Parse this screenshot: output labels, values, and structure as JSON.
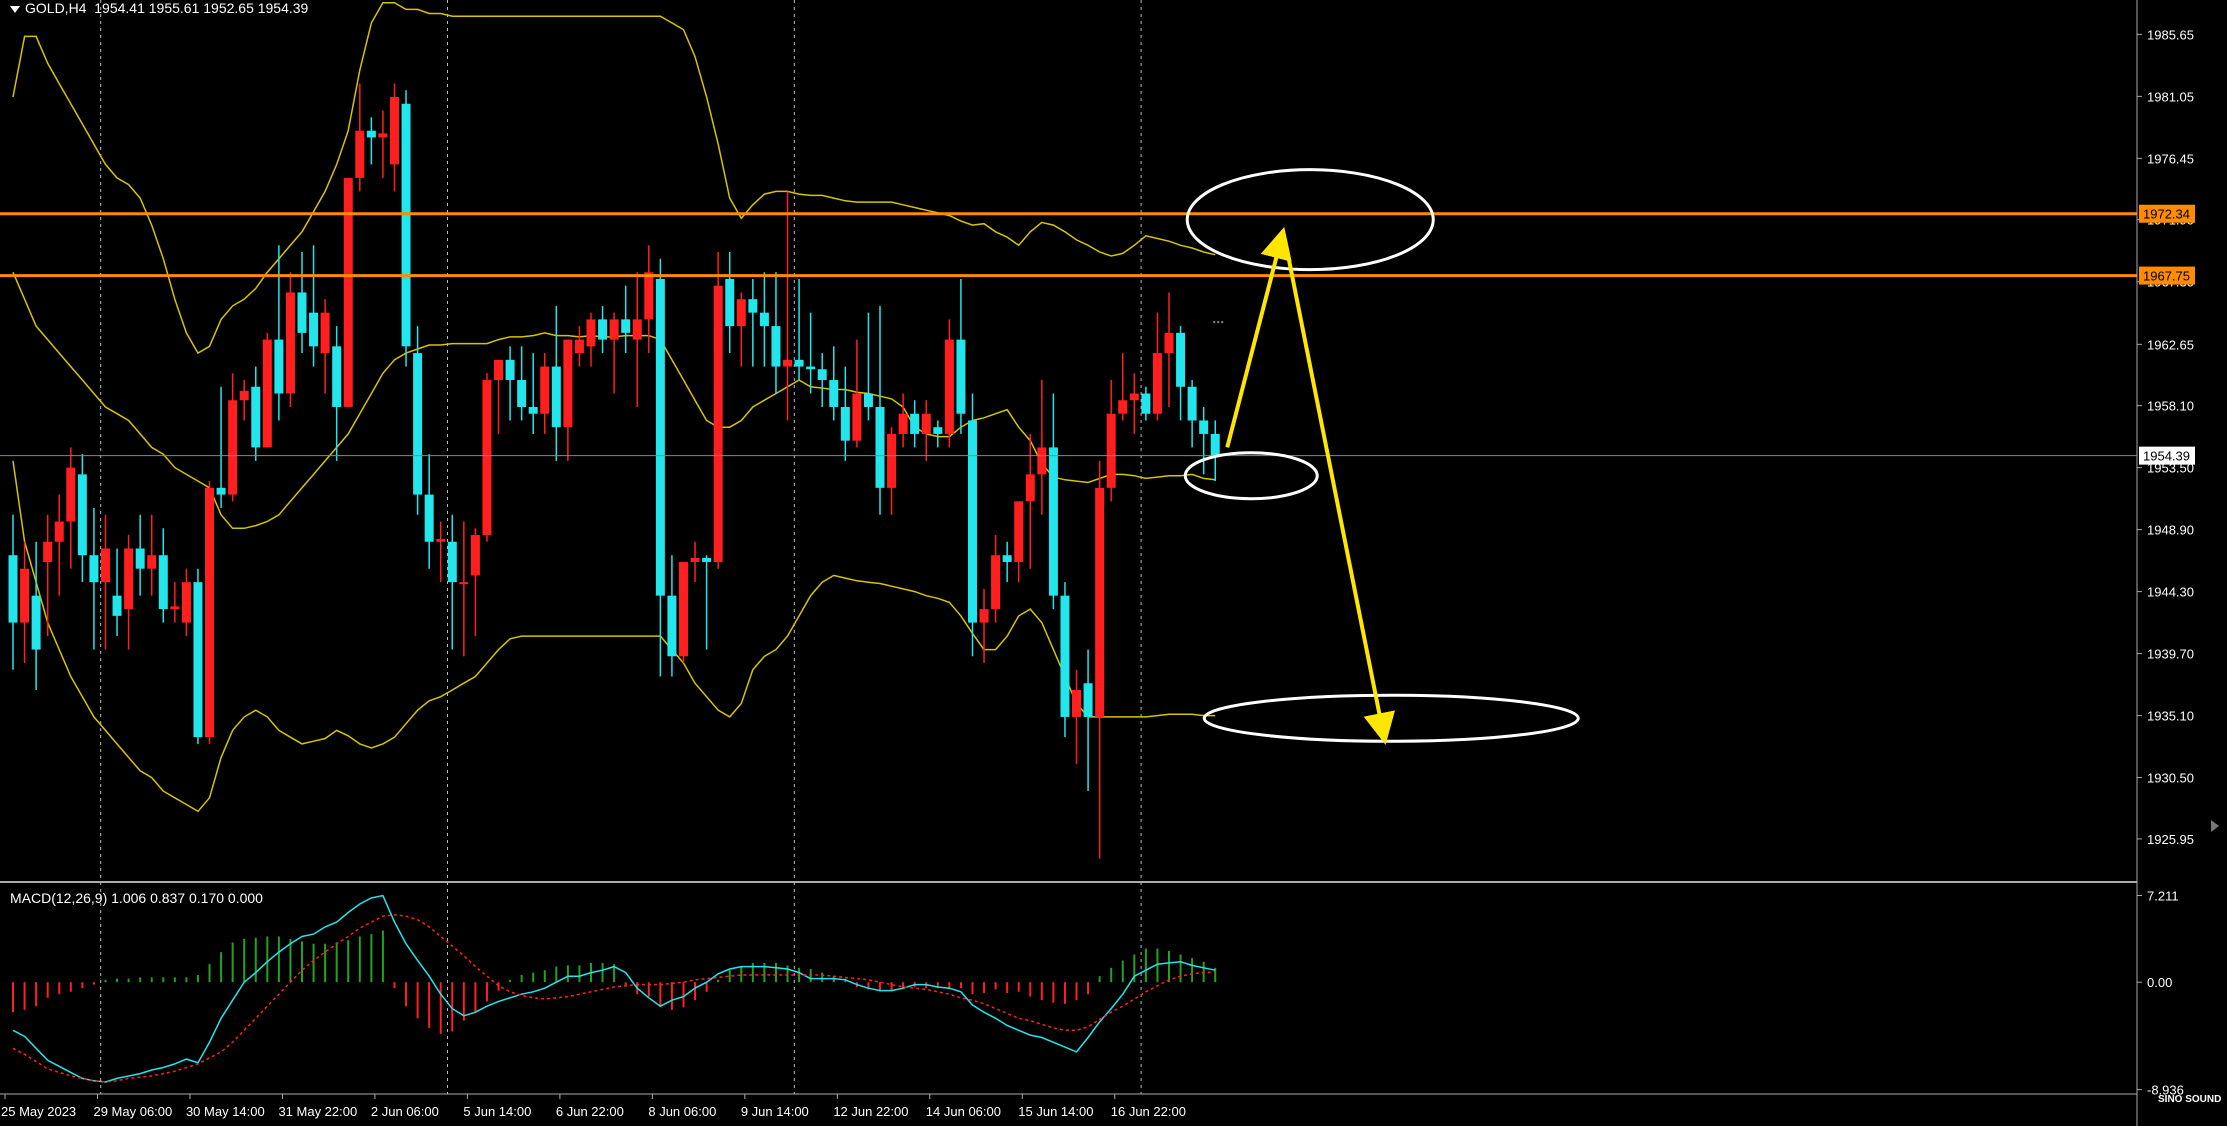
{
  "header": {
    "symbol": "GOLD,H4",
    "ohlc": "1954.41 1955.61 1952.65 1954.39"
  },
  "macd": {
    "label": "MACD(12,26,9) 1.006 0.837 0.170 0.000"
  },
  "logo": {
    "text": "SINO SOUND"
  },
  "colors": {
    "bull": "#ff1f1f",
    "bear": "#22e6ec",
    "bands": "#d6c400",
    "hline": "#ff8c00",
    "macd_line": "#22e6ec",
    "signal": "#ff2020",
    "hist_pos": "#22a322",
    "hist_neg": "#ff2020",
    "arrow": "#ffe600",
    "ellipse": "#ffffff"
  },
  "chart_data": {
    "type": "candlestick",
    "timeframe": "H4",
    "ylim": [
      1922.9,
      1988.2
    ],
    "price_ticks": [
      "1985.65",
      "1981.05",
      "1976.45",
      "1971.90",
      "1967.30",
      "1962.65",
      "1958.10",
      "1953.50",
      "1948.90",
      "1944.30",
      "1939.70",
      "1935.10",
      "1930.50",
      "1925.95"
    ],
    "price_tick_values": [
      1985.65,
      1981.05,
      1976.45,
      1971.9,
      1967.3,
      1962.65,
      1958.1,
      1953.5,
      1948.9,
      1944.3,
      1939.7,
      1935.1,
      1930.5,
      1925.95
    ],
    "x_labels": [
      "25 May 2023",
      "29 May 06:00",
      "30 May 14:00",
      "31 May 22:00",
      "2 Jun 06:00",
      "5 Jun 14:00",
      "6 Jun 22:00",
      "8 Jun 06:00",
      "9 Jun 14:00",
      "12 Jun 22:00",
      "14 Jun 06:00",
      "15 Jun 14:00",
      "16 Jun 22:00"
    ],
    "x_label_index": [
      0,
      8,
      16,
      24,
      32,
      40,
      48,
      56,
      64,
      72,
      80,
      88,
      96
    ],
    "separator_index": [
      8,
      38,
      68,
      98
    ],
    "horizontal_lines": [
      {
        "label": "1972.34",
        "value": 1972.34
      },
      {
        "label": "1967.75",
        "value": 1967.75
      }
    ],
    "current_price": {
      "label": "1954.39",
      "value": 1954.39
    },
    "candles": [
      [
        1947.0,
        1950.0,
        1938.5,
        1942.0
      ],
      [
        1942.0,
        1948.0,
        1939.0,
        1946.0
      ],
      [
        1944.0,
        1948.0,
        1937.0,
        1940.0
      ],
      [
        1946.5,
        1950.0,
        1941.0,
        1948.0
      ],
      [
        1948.0,
        1951.5,
        1944.0,
        1949.5
      ],
      [
        1949.5,
        1955.0,
        1946.0,
        1953.5
      ],
      [
        1953.0,
        1954.5,
        1945.0,
        1947.0
      ],
      [
        1947.0,
        1950.5,
        1940.0,
        1945.0
      ],
      [
        1945.0,
        1950.0,
        1940.0,
        1947.5
      ],
      [
        1944.0,
        1947.5,
        1941.0,
        1942.5
      ],
      [
        1943.0,
        1948.5,
        1940.0,
        1947.5
      ],
      [
        1947.5,
        1950.0,
        1944.0,
        1946.0
      ],
      [
        1946.0,
        1950.0,
        1944.0,
        1947.0
      ],
      [
        1947.0,
        1949.0,
        1942.0,
        1943.0
      ],
      [
        1943.0,
        1945.0,
        1942.0,
        1943.2
      ],
      [
        1942.0,
        1946.0,
        1941.0,
        1945.0
      ],
      [
        1945.0,
        1946.0,
        1933.0,
        1933.5
      ],
      [
        1933.5,
        1952.5,
        1933.0,
        1952.0
      ],
      [
        1952.0,
        1959.5,
        1950.5,
        1951.5
      ],
      [
        1951.5,
        1960.5,
        1951.0,
        1958.5
      ],
      [
        1958.5,
        1960.0,
        1957.0,
        1959.2
      ],
      [
        1959.5,
        1961.0,
        1954.0,
        1955.0
      ],
      [
        1955.0,
        1963.5,
        1955.0,
        1963.0
      ],
      [
        1963.0,
        1970.0,
        1957.0,
        1959.0
      ],
      [
        1959.0,
        1968.0,
        1958.0,
        1966.5
      ],
      [
        1966.5,
        1969.5,
        1962.0,
        1963.5
      ],
      [
        1965.0,
        1970.0,
        1961.0,
        1962.5
      ],
      [
        1962.0,
        1966.0,
        1959.0,
        1965.0
      ],
      [
        1962.5,
        1964.0,
        1954.0,
        1958.0
      ],
      [
        1958.0,
        1975.0,
        1958.0,
        1975.0
      ],
      [
        1975.0,
        1982.0,
        1974.0,
        1978.5
      ],
      [
        1978.5,
        1979.5,
        1976.0,
        1978.0
      ],
      [
        1978.0,
        1980.0,
        1975.0,
        1978.3
      ],
      [
        1976.0,
        1982.0,
        1974.0,
        1981.0
      ],
      [
        1980.5,
        1981.5,
        1961.0,
        1962.5
      ],
      [
        1962.0,
        1964.0,
        1950.0,
        1951.5
      ],
      [
        1951.5,
        1954.5,
        1946.0,
        1948.0
      ],
      [
        1948.0,
        1949.5,
        1945.0,
        1948.2
      ],
      [
        1948.0,
        1950.0,
        1940.0,
        1945.0
      ],
      [
        1945.0,
        1949.5,
        1939.5,
        1945.0
      ],
      [
        1945.5,
        1949.0,
        1941.0,
        1948.5
      ],
      [
        1948.5,
        1960.5,
        1948.0,
        1960.0
      ],
      [
        1960.0,
        1961.5,
        1956.0,
        1961.5
      ],
      [
        1961.5,
        1962.5,
        1957.0,
        1960.0
      ],
      [
        1960.0,
        1962.5,
        1957.0,
        1958.0
      ],
      [
        1958.0,
        1962.0,
        1956.0,
        1957.5
      ],
      [
        1957.5,
        1962.0,
        1956.0,
        1961.0
      ],
      [
        1961.0,
        1965.5,
        1954.0,
        1956.5
      ],
      [
        1956.5,
        1963.0,
        1954.0,
        1963.0
      ],
      [
        1962.0,
        1964.0,
        1961.0,
        1963.0
      ],
      [
        1962.5,
        1965.0,
        1961.0,
        1964.5
      ],
      [
        1964.5,
        1965.5,
        1962.0,
        1963.0
      ],
      [
        1963.0,
        1965.0,
        1959.0,
        1964.5
      ],
      [
        1964.5,
        1967.0,
        1962.0,
        1963.5
      ],
      [
        1963.0,
        1968.0,
        1958.0,
        1964.5
      ],
      [
        1964.5,
        1970.0,
        1962.0,
        1968.0
      ],
      [
        1967.5,
        1969.0,
        1938.0,
        1944.0
      ],
      [
        1944.0,
        1947.0,
        1938.0,
        1939.5
      ],
      [
        1939.5,
        1946.0,
        1939.0,
        1946.5
      ],
      [
        1946.5,
        1948.0,
        1945.0,
        1946.8
      ],
      [
        1946.8,
        1947.0,
        1940.0,
        1946.5
      ],
      [
        1946.5,
        1969.5,
        1946.0,
        1967.0
      ],
      [
        1967.5,
        1969.5,
        1962.0,
        1964.0
      ],
      [
        1964.0,
        1966.5,
        1961.0,
        1966.0
      ],
      [
        1966.0,
        1967.5,
        1961.0,
        1965.0
      ],
      [
        1965.0,
        1968.0,
        1961.0,
        1964.0
      ],
      [
        1964.0,
        1968.0,
        1959.0,
        1961.0
      ],
      [
        1961.0,
        1974.0,
        1957.0,
        1961.5
      ],
      [
        1961.5,
        1967.5,
        1960.0,
        1961.0
      ],
      [
        1961.0,
        1965.0,
        1959.0,
        1960.8
      ],
      [
        1960.8,
        1962.0,
        1958.0,
        1960.0
      ],
      [
        1960.0,
        1962.5,
        1957.0,
        1958.0
      ],
      [
        1958.0,
        1961.0,
        1954.0,
        1955.5
      ],
      [
        1955.5,
        1963.0,
        1955.0,
        1959.0
      ],
      [
        1959.0,
        1965.0,
        1957.0,
        1958.0
      ],
      [
        1958.0,
        1965.5,
        1950.0,
        1952.0
      ],
      [
        1952.0,
        1956.5,
        1950.0,
        1956.0
      ],
      [
        1956.0,
        1959.0,
        1955.0,
        1957.5
      ],
      [
        1957.5,
        1958.5,
        1955.0,
        1956.0
      ],
      [
        1956.0,
        1958.5,
        1954.0,
        1957.5
      ],
      [
        1956.5,
        1957.0,
        1955.0,
        1956.0
      ],
      [
        1956.0,
        1964.5,
        1955.0,
        1963.0
      ],
      [
        1963.0,
        1967.5,
        1956.0,
        1957.5
      ],
      [
        1957.0,
        1959.0,
        1939.5,
        1942.0
      ],
      [
        1942.0,
        1944.5,
        1939.0,
        1943.0
      ],
      [
        1943.0,
        1948.5,
        1942.0,
        1947.0
      ],
      [
        1947.0,
        1948.0,
        1945.0,
        1946.5
      ],
      [
        1946.5,
        1951.0,
        1945.0,
        1951.0
      ],
      [
        1951.0,
        1956.0,
        1946.0,
        1953.0
      ],
      [
        1953.0,
        1960.0,
        1950.0,
        1955.0
      ],
      [
        1955.0,
        1959.0,
        1943.0,
        1944.0
      ],
      [
        1944.0,
        1945.0,
        1933.5,
        1935.0
      ],
      [
        1935.0,
        1938.5,
        1931.5,
        1937.0
      ],
      [
        1937.5,
        1940.0,
        1929.5,
        1935.0
      ],
      [
        1935.0,
        1954.0,
        1924.5,
        1952.0
      ],
      [
        1952.0,
        1960.0,
        1951.0,
        1957.5
      ],
      [
        1957.5,
        1962.0,
        1957.0,
        1958.5
      ],
      [
        1958.5,
        1960.5,
        1956.0,
        1959.0
      ],
      [
        1959.0,
        1959.5,
        1957.0,
        1957.5
      ],
      [
        1957.5,
        1965.0,
        1957.0,
        1962.0
      ],
      [
        1962.0,
        1966.5,
        1958.0,
        1963.5
      ],
      [
        1963.5,
        1964.0,
        1957.0,
        1959.5
      ],
      [
        1959.5,
        1960.0,
        1955.0,
        1957.0
      ],
      [
        1957.0,
        1958.0,
        1953.0,
        1956.0
      ],
      [
        1956.0,
        1957.0,
        1952.5,
        1954.39
      ]
    ],
    "bollinger": {
      "period_note": "",
      "upper": [
        1981,
        1985.5,
        1985.5,
        1983.5,
        1982,
        1980.5,
        1979,
        1977.5,
        1976,
        1975,
        1974.5,
        1973.5,
        1971.5,
        1969,
        1966,
        1963.5,
        1962,
        1962.5,
        1964.5,
        1965.5,
        1966,
        1966.8,
        1968,
        1969,
        1970,
        1971,
        1972.5,
        1974,
        1976,
        1978.5,
        1983,
        1986.5,
        1988,
        1988,
        1987.5,
        1987.5,
        1987.2,
        1987.2,
        1987,
        1987,
        1987,
        1987,
        1987,
        1987,
        1987,
        1987,
        1987,
        1987,
        1987,
        1987,
        1987,
        1987,
        1987,
        1987,
        1987,
        1987,
        1987,
        1986.5,
        1986,
        1984,
        1981,
        1977.5,
        1973.5,
        1972,
        1973,
        1973.8,
        1974,
        1974,
        1973.8,
        1973.7,
        1973.7,
        1973.5,
        1973.3,
        1973.2,
        1973.2,
        1973.2,
        1973.2,
        1973,
        1972.8,
        1972.6,
        1972.4,
        1972.2,
        1971.8,
        1971.5,
        1971.6,
        1971,
        1970.6,
        1970,
        1971,
        1971.7,
        1971.5,
        1971,
        1970.4,
        1970,
        1969.5,
        1969.2,
        1969.4,
        1970,
        1970.7,
        1970.5,
        1970.3,
        1970,
        1969.8,
        1969.5,
        1969.3
      ],
      "middle": [
        1968,
        1966,
        1964,
        1963,
        1962,
        1961,
        1960,
        1959,
        1958,
        1957.5,
        1957,
        1956,
        1955,
        1954.5,
        1953.5,
        1953,
        1952.5,
        1952,
        1950,
        1949,
        1949,
        1949.2,
        1949.5,
        1950,
        1951,
        1952,
        1953,
        1954,
        1955,
        1956,
        1957.5,
        1959,
        1960.5,
        1961.5,
        1962,
        1962.3,
        1962.6,
        1962.6,
        1962.7,
        1962.7,
        1962.7,
        1962.7,
        1963,
        1963.2,
        1963.2,
        1963.3,
        1963.5,
        1963.3,
        1963.3,
        1963.2,
        1963.3,
        1963.2,
        1963.2,
        1963.3,
        1963.3,
        1963.3,
        1963.0,
        1961.5,
        1960,
        1958.5,
        1957,
        1956.5,
        1956.5,
        1957,
        1958,
        1958.5,
        1959,
        1959.5,
        1960,
        1959.5,
        1959.4,
        1959.3,
        1959.3,
        1959.1,
        1959,
        1958.8,
        1958.6,
        1958,
        1956.5,
        1956.0,
        1955.8,
        1955.8,
        1956.5,
        1957,
        1957.2,
        1957.5,
        1957.8,
        1956.5,
        1955.5,
        1953.8,
        1952.8,
        1952.6,
        1952.5,
        1952.4,
        1952.7,
        1953.0,
        1953.0,
        1952.9,
        1952.7,
        1952.8,
        1952.9,
        1952.9,
        1953.0,
        1952.7,
        1952.6
      ],
      "lower": [
        1954,
        1948,
        1945,
        1942,
        1940,
        1938,
        1936.5,
        1935,
        1934,
        1933,
        1932,
        1931,
        1930.5,
        1929.5,
        1929,
        1928.5,
        1928,
        1929,
        1932,
        1934,
        1935,
        1935.5,
        1935,
        1934,
        1933.5,
        1933,
        1933.2,
        1933.4,
        1934,
        1933.6,
        1933,
        1932.7,
        1933,
        1933.5,
        1934.5,
        1935.5,
        1936.2,
        1936.5,
        1937,
        1937.5,
        1938,
        1939,
        1940,
        1940.8,
        1941,
        1941,
        1941,
        1941,
        1941,
        1941,
        1941,
        1941,
        1941,
        1941,
        1941,
        1941,
        1941,
        1940,
        1939,
        1937.5,
        1936.5,
        1935.5,
        1935,
        1936,
        1938.5,
        1939.5,
        1940,
        1941,
        1942.5,
        1944,
        1945,
        1945.5,
        1945.3,
        1945.1,
        1945,
        1944.9,
        1944.7,
        1944.5,
        1944.3,
        1944,
        1943.8,
        1943.5,
        1942.5,
        1941.2,
        1940,
        1940,
        1941,
        1942.5,
        1943,
        1942,
        1940,
        1938,
        1936,
        1935,
        1935,
        1935,
        1935,
        1935,
        1935,
        1935.1,
        1935.2,
        1935.2,
        1935.2,
        1935.1,
        1935.1
      ]
    },
    "macd_axis": {
      "labels": [
        "7.211",
        "0.00",
        "-8.936"
      ],
      "values": [
        7.211,
        0.0,
        -8.936
      ],
      "ylim": [
        -9.3,
        8.0
      ]
    },
    "macd_hist": [
      -2.5,
      -2.3,
      -2,
      -1.3,
      -1,
      -0.8,
      -0.5,
      -0.2,
      0.2,
      0.3,
      0.3,
      0.4,
      0.4,
      0.4,
      0.4,
      0.4,
      0.6,
      1.5,
      2.5,
      3.3,
      3.6,
      3.7,
      3.8,
      3.8,
      3.6,
      3.4,
      3.2,
      3.2,
      3.3,
      3.5,
      3.8,
      4,
      4.3,
      -0.5,
      -2,
      -3,
      -3.8,
      -4.3,
      -4.1,
      -3.2,
      -2.5,
      -1.6,
      -0.7,
      0.2,
      0.6,
      0.8,
      1,
      1.3,
      1.4,
      1.4,
      1.6,
      1.6,
      1.5,
      -0.3,
      -1,
      -1.2,
      -2,
      -2.3,
      -2.1,
      -1.5,
      -0.8,
      0.2,
      1,
      1.3,
      1.6,
      1.6,
      1.6,
      1.4,
      1.2,
      1.1,
      0.8,
      0.5,
      0.3,
      -0.4,
      -0.6,
      -0.7,
      -0.7,
      -0.5,
      -0.4,
      -0.5,
      -0.5,
      -0.5,
      -0.5,
      -1,
      -0.9,
      -0.6,
      -0.9,
      -0.8,
      -1.2,
      -1.5,
      -1.7,
      -1.8,
      -1.5,
      -1,
      0.5,
      1.2,
      1.8,
      2.3,
      2.8,
      2.8,
      2.6,
      2.3,
      2.0,
      1.7,
      1.2
    ],
    "macd_line": [
      -4,
      -4.5,
      -5.5,
      -6.5,
      -7,
      -7.5,
      -8,
      -8.2,
      -8.3,
      -8,
      -7.8,
      -7.6,
      -7.3,
      -7.1,
      -6.8,
      -6.4,
      -6.7,
      -5,
      -3,
      -1.5,
      0,
      0.8,
      1.7,
      2.5,
      3.2,
      3.8,
      4,
      4.6,
      5,
      5.8,
      6.5,
      7,
      7.2,
      5,
      3.2,
      1.8,
      0.5,
      -1,
      -2.2,
      -2.8,
      -2.5,
      -2,
      -1.6,
      -1.3,
      -1,
      -0.8,
      -0.5,
      0,
      0.5,
      0.5,
      0.8,
      1,
      1.3,
      0.8,
      -0.5,
      -1.3,
      -2,
      -1.5,
      -1.2,
      -0.5,
      0,
      0.7,
      1.1,
      1.3,
      1.3,
      1.3,
      1.2,
      1.1,
      0.8,
      0.3,
      0.3,
      0.3,
      0.2,
      -0.2,
      -0.5,
      -0.7,
      -0.7,
      -0.5,
      -0.2,
      -0.2,
      -0.4,
      -0.5,
      -0.8,
      -1.9,
      -2.5,
      -3,
      -3.6,
      -4,
      -4.4,
      -4.6,
      -5,
      -5.4,
      -5.8,
      -4.6,
      -3.3,
      -2.2,
      -1,
      0.5,
      1,
      1.5,
      1.6,
      1.7,
      1.4,
      1.2,
      1.0
    ],
    "macd_signal": [
      -5.5,
      -6,
      -6.6,
      -7.2,
      -7.5,
      -7.8,
      -8,
      -8.2,
      -8.3,
      -8.2,
      -8,
      -7.9,
      -7.8,
      -7.6,
      -7.4,
      -7.1,
      -6.8,
      -6.3,
      -5.8,
      -5,
      -4,
      -3,
      -2,
      -1,
      0,
      1,
      1.8,
      2.5,
      3.2,
      3.8,
      4.5,
      5,
      5.5,
      5.6,
      5.5,
      5.2,
      4.6,
      3.8,
      3,
      2.2,
      1.3,
      0.5,
      -0.3,
      -0.8,
      -1.1,
      -1.3,
      -1.4,
      -1.3,
      -1.2,
      -1,
      -0.8,
      -0.6,
      -0.4,
      -0.3,
      -0.2,
      -0.2,
      -0.2,
      -0.1,
      0,
      0.2,
      0.3,
      0.4,
      0.5,
      0.6,
      0.6,
      0.6,
      0.6,
      0.6,
      0.6,
      0.6,
      0.6,
      0.5,
      0.4,
      0.3,
      0.2,
      0,
      -0.2,
      -0.4,
      -0.5,
      -0.6,
      -0.8,
      -1,
      -1.3,
      -1.5,
      -1.8,
      -2.2,
      -2.6,
      -3,
      -3.2,
      -3.5,
      -3.8,
      -4,
      -4,
      -3.7,
      -3.1,
      -2.5,
      -2,
      -1.4,
      -0.8,
      -0.3,
      0.2,
      0.5,
      0.7,
      0.8,
      0.84
    ]
  }
}
